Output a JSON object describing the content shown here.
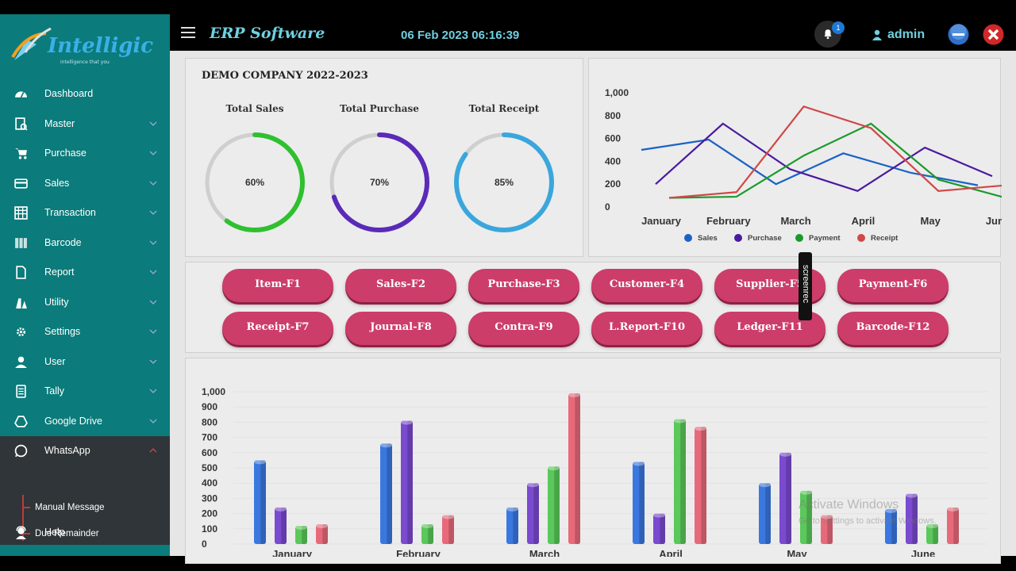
{
  "brand": {
    "logo_text": "Intelligic",
    "logo_tagline": "intelligence that you"
  },
  "topbar": {
    "title": "ERP Software",
    "datetime": "06 Feb 2023 06:16:39",
    "notifications": "1",
    "user": "admin"
  },
  "sidebar": {
    "items": [
      {
        "label": "Dashboard",
        "icon": "dashboard-icon"
      },
      {
        "label": "Master",
        "icon": "master-icon"
      },
      {
        "label": "Purchase",
        "icon": "cart-icon"
      },
      {
        "label": "Sales",
        "icon": "sales-icon"
      },
      {
        "label": "Transaction",
        "icon": "transaction-icon"
      },
      {
        "label": "Barcode",
        "icon": "barcode-icon"
      },
      {
        "label": "Report",
        "icon": "report-icon"
      },
      {
        "label": "Utility",
        "icon": "utility-icon"
      },
      {
        "label": "Settings",
        "icon": "settings-icon"
      },
      {
        "label": "User",
        "icon": "user-icon"
      },
      {
        "label": "Tally",
        "icon": "tally-icon"
      },
      {
        "label": "Google Drive",
        "icon": "google-drive-icon"
      },
      {
        "label": "WhatsApp",
        "icon": "whatsapp-icon"
      }
    ],
    "whatsapp_sub": [
      "Manual Message",
      "Due Remainder"
    ],
    "help": "Help"
  },
  "company": {
    "title": "DEMO COMPANY 2022-2023",
    "gauges": [
      {
        "label": "Total Sales",
        "percent": 60,
        "text": "60%",
        "color": "#2fc02f"
      },
      {
        "label": "Total Purchase",
        "percent": 70,
        "text": "70%",
        "color": "#5a2ab8"
      },
      {
        "label": "Total Receipt",
        "percent": 85,
        "text": "85%",
        "color": "#3aa6dc"
      }
    ]
  },
  "shortcuts": [
    "Item-F1",
    "Sales-F2",
    "Purchase-F3",
    "Customer-F4",
    "Supplier-F5",
    "Payment-F6",
    "Receipt-F7",
    "Journal-F8",
    "Contra-F9",
    "L.Report-F10",
    "Ledger-F11",
    "Barcode-F12"
  ],
  "chart_data": [
    {
      "type": "line",
      "categories": [
        "January",
        "February",
        "March",
        "April",
        "May",
        "June"
      ],
      "ylim": [
        0,
        1000
      ],
      "yticks": [
        "0",
        "200",
        "400",
        "600",
        "800",
        "1,000"
      ],
      "legend": "bottom",
      "series": [
        {
          "name": "Sales",
          "color": "#1a62c8",
          "values": [
            500,
            590,
            200,
            470,
            300,
            190
          ]
        },
        {
          "name": "Purchase",
          "color": "#4a1aa0",
          "values": [
            200,
            730,
            330,
            140,
            520,
            270
          ]
        },
        {
          "name": "Payment",
          "color": "#1a9a2a",
          "values": [
            80,
            90,
            450,
            730,
            240,
            80
          ]
        },
        {
          "name": "Receipt",
          "color": "#d04848",
          "values": [
            80,
            130,
            880,
            690,
            140,
            190
          ]
        }
      ]
    },
    {
      "type": "bar",
      "categories": [
        "January",
        "February",
        "March",
        "April",
        "May",
        "June"
      ],
      "ylim": [
        0,
        1000
      ],
      "yticks": [
        "0",
        "100",
        "200",
        "300",
        "400",
        "500",
        "600",
        "700",
        "800",
        "900",
        "1,000"
      ],
      "series": [
        {
          "name": "Sales",
          "color": "#3a78e0",
          "values": [
            550,
            660,
            240,
            540,
            400,
            230
          ]
        },
        {
          "name": "Purchase",
          "color": "#7a4ad0",
          "values": [
            240,
            810,
            400,
            200,
            600,
            330
          ]
        },
        {
          "name": "Payment",
          "color": "#5ac85a",
          "values": [
            120,
            130,
            510,
            820,
            350,
            130
          ]
        },
        {
          "name": "Receipt",
          "color": "#e86a7a",
          "values": [
            130,
            190,
            990,
            770,
            190,
            240
          ]
        }
      ]
    }
  ],
  "watermark": {
    "title": "Activate Windows",
    "sub": "Go to Settings to activate Windows."
  },
  "screenrec": "screenrec"
}
